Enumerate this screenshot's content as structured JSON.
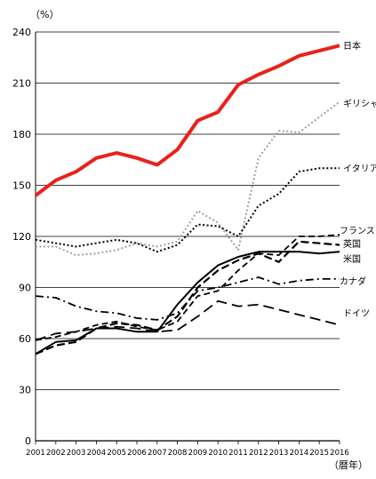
{
  "chart_data": {
    "type": "line",
    "y_unit_label": "（%）",
    "x_unit_label": "（暦年）",
    "ylim": [
      0,
      240
    ],
    "yticks": [
      0,
      30,
      60,
      90,
      120,
      150,
      180,
      210,
      240
    ],
    "grid": true,
    "x": [
      2001,
      2002,
      2003,
      2004,
      2005,
      2006,
      2007,
      2008,
      2009,
      2010,
      2011,
      2012,
      2013,
      2014,
      2015,
      2016
    ],
    "series": [
      {
        "name": "日本",
        "color": "#e8221b",
        "style": "solid-thick",
        "values": [
          144,
          153,
          158,
          166,
          169,
          166,
          162,
          171,
          188,
          193,
          209,
          215,
          220,
          226,
          229,
          232
        ]
      },
      {
        "name": "ギリシャ",
        "color": "#a0a0a0",
        "style": "dotted",
        "values": [
          114,
          114,
          109,
          110,
          112,
          116,
          114,
          117,
          135,
          128,
          112,
          166,
          182,
          181,
          190,
          199
        ]
      },
      {
        "name": "イタリア",
        "color": "#000000",
        "style": "dotted",
        "values": [
          118,
          116,
          114,
          116,
          118,
          116,
          111,
          115,
          127,
          126,
          120,
          138,
          145,
          158,
          160,
          160
        ]
      },
      {
        "name": "フランス",
        "color": "#000000",
        "style": "dash",
        "values": [
          59,
          61,
          64,
          68,
          70,
          67,
          65,
          70,
          85,
          88,
          100,
          110,
          109,
          120,
          120,
          121
        ]
      },
      {
        "name": "英国",
        "color": "#000000",
        "style": "dash-thick",
        "values": [
          51,
          56,
          58,
          66,
          69,
          68,
          65,
          73,
          90,
          100,
          106,
          110,
          105,
          117,
          116,
          115
        ]
      },
      {
        "name": "米国",
        "color": "#000000",
        "style": "solid",
        "values": [
          51,
          58,
          59,
          66,
          66,
          64,
          64,
          80,
          93,
          103,
          108,
          111,
          111,
          111,
          110,
          111
        ]
      },
      {
        "name": "カナダ",
        "color": "#000000",
        "style": "dash-dot",
        "values": [
          85,
          84,
          79,
          76,
          75,
          72,
          71,
          75,
          88,
          90,
          93,
          96,
          92,
          94,
          95,
          95
        ]
      },
      {
        "name": "ドイツ",
        "color": "#000000",
        "style": "long-dash",
        "values": [
          59,
          63,
          64,
          66,
          67,
          66,
          64,
          65,
          73,
          82,
          79,
          80,
          77,
          74,
          71,
          68
        ]
      }
    ]
  }
}
